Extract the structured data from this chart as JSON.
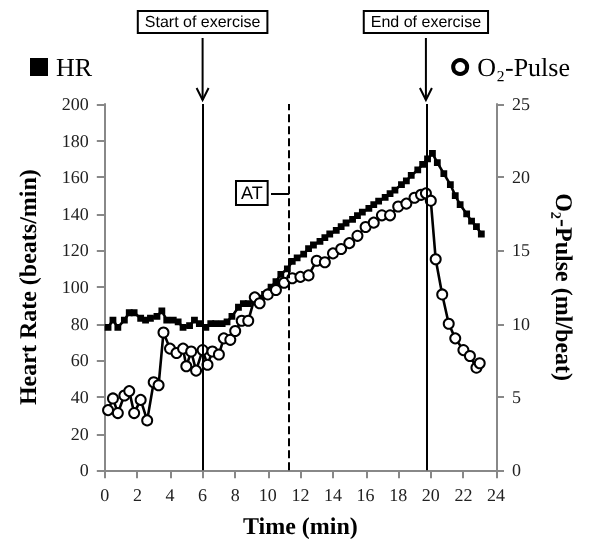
{
  "chart_data": {
    "type": "line",
    "xlabel": "Time (min)",
    "ylabel": "Heart Rate (beats/min)",
    "y2label": "O₂-Pulse (ml/beat)",
    "xlim": [
      0,
      24
    ],
    "xticks": [
      0,
      2,
      4,
      6,
      8,
      10,
      12,
      14,
      16,
      18,
      20,
      22,
      24
    ],
    "ylim": [
      0,
      200
    ],
    "yticks": [
      0,
      20,
      40,
      60,
      80,
      100,
      120,
      140,
      160,
      180,
      200
    ],
    "y2lim": [
      0,
      25
    ],
    "y2ticks": [
      0,
      5,
      10,
      15,
      20,
      25
    ],
    "grid": false,
    "legend": "top",
    "series": [
      {
        "name": "HR",
        "color": "#000000",
        "marker": "square",
        "x": [
          0.2,
          0.5,
          0.8,
          1.2,
          1.5,
          1.8,
          2.2,
          2.5,
          2.8,
          3.2,
          3.5,
          3.8,
          4.2,
          4.5,
          4.8,
          5.2,
          5.5,
          5.8,
          6.2,
          6.5,
          6.8,
          7.2,
          7.5,
          7.8,
          8.2,
          8.5,
          8.8,
          9.2,
          9.5,
          9.8,
          10.2,
          10.5,
          10.8,
          11.2,
          11.5,
          11.8,
          12.2,
          12.5,
          12.8,
          13.2,
          13.5,
          13.8,
          14.2,
          14.5,
          14.8,
          15.2,
          15.5,
          15.8,
          16.2,
          16.5,
          16.8,
          17.2,
          17.5,
          17.8,
          18.2,
          18.5,
          18.8,
          19.2,
          19.5,
          19.8,
          20.1,
          20.4,
          20.8,
          21.2,
          21.5,
          21.8,
          22.2,
          22.5,
          22.8,
          23.1
        ],
        "values": [
          78,
          82,
          78,
          82,
          86,
          86,
          83,
          82,
          83,
          84,
          87,
          82,
          82,
          81,
          78,
          79,
          82,
          80,
          78,
          80,
          80,
          80,
          81,
          84,
          89,
          91,
          91,
          92,
          94,
          96,
          100,
          103,
          107,
          110,
          114,
          116,
          118,
          121,
          123,
          125,
          127,
          129,
          131,
          133,
          135,
          137,
          139,
          141,
          143,
          145,
          147,
          149,
          151,
          153,
          156,
          158,
          161,
          164,
          167,
          170,
          173,
          168,
          162,
          156,
          150,
          145,
          140,
          136,
          133,
          129
        ]
      },
      {
        "name": "O₂-Pulse",
        "color": "#000000",
        "marker": "circle",
        "axis": "y2",
        "x": [
          0.2,
          0.5,
          0.8,
          1.2,
          1.5,
          1.8,
          2.2,
          2.6,
          3.0,
          3.3,
          3.6,
          4.0,
          4.4,
          4.8,
          5.0,
          5.3,
          5.6,
          6.0,
          6.3,
          6.6,
          7.0,
          7.3,
          7.7,
          8.0,
          8.4,
          8.8,
          9.2,
          9.5,
          10.0,
          10.5,
          11.0,
          11.5,
          12.0,
          12.5,
          13.0,
          13.5,
          14.0,
          14.5,
          15.0,
          15.5,
          16.0,
          16.5,
          17.0,
          17.5,
          18.0,
          18.5,
          19.0,
          19.4,
          19.7,
          20.0,
          20.3,
          20.7,
          21.1,
          21.5,
          22.0,
          22.4,
          22.8,
          23.0
        ],
        "values": [
          4.1,
          4.9,
          3.9,
          5.1,
          5.4,
          3.9,
          4.8,
          3.4,
          6.0,
          5.8,
          9.4,
          8.3,
          8.0,
          8.3,
          7.1,
          8.1,
          6.8,
          8.2,
          7.2,
          8.1,
          7.9,
          9.0,
          8.9,
          9.5,
          10.2,
          10.2,
          11.8,
          11.4,
          12.0,
          12.3,
          12.8,
          13.1,
          13.2,
          13.3,
          14.3,
          14.2,
          14.8,
          15.1,
          15.5,
          16.0,
          16.6,
          16.9,
          17.4,
          17.4,
          18.0,
          18.2,
          18.6,
          18.8,
          18.9,
          18.4,
          14.4,
          12.0,
          10.0,
          9.0,
          8.2,
          7.8,
          7.0,
          7.3
        ]
      }
    ],
    "ref_lines": [
      {
        "axis": "x",
        "value": 6,
        "label": "Start of exercise",
        "line_style": "solid"
      },
      {
        "axis": "x",
        "value": 11.3,
        "label": "AT",
        "line_style": "dashed"
      },
      {
        "axis": "x",
        "value": 19.7,
        "label": "End of exercise",
        "line_style": "solid"
      }
    ]
  }
}
